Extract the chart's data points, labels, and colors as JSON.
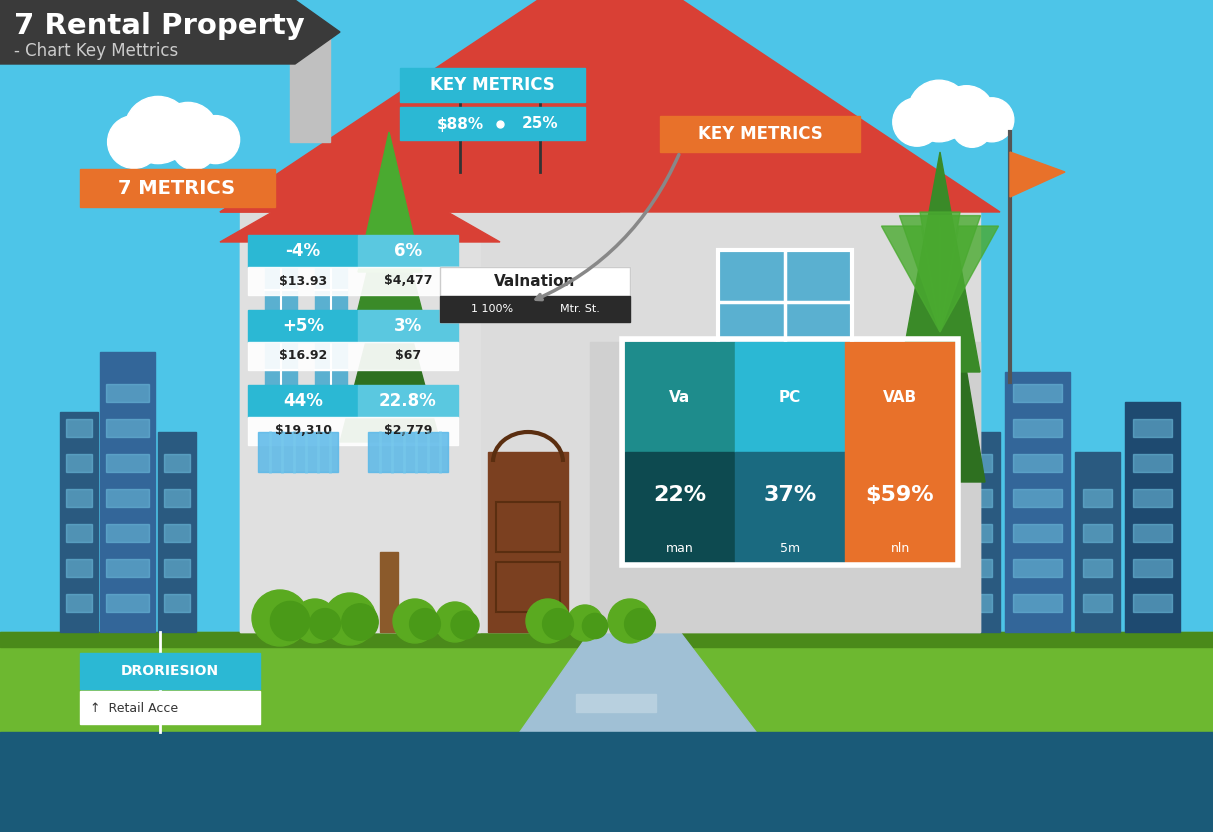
{
  "title_line1": "7 Rental Property",
  "title_line2": "- Chart Key Mettrics",
  "bg_sky_color": "#4DC5E8",
  "title_bg_color": "#3A3A3A",
  "orange_label": "7 METRICS",
  "orange_color": "#E8712A",
  "key_metrics_label": "KEY METRICS",
  "key_metrics_color": "#2BB8D4",
  "key_metrics2_label": "KEY METRICS",
  "key_metrics2_color": "#E8712A",
  "metrics_top_pct": "$88%",
  "metrics_top_val": "25%",
  "valuation_label": "Valnation",
  "valuation_sub1": "1 100%",
  "valuation_sub2": "Mtr. St.",
  "metric_rows": [
    {
      "pct1": "-4%",
      "pct2": "6%",
      "val1": "$13.93",
      "val2": "$4,477"
    },
    {
      "pct1": "+5%",
      "pct2": "3%",
      "val1": "$16.92",
      "val2": "$67"
    },
    {
      "pct1": "44%",
      "pct2": "22.8%",
      "val1": "$19,310",
      "val2": "$2,779"
    }
  ],
  "garage_cols": [
    {
      "header": "Va",
      "value": "22%",
      "sub": "man",
      "color_top": "#1E8C8C",
      "color_bot": "#0D4A50"
    },
    {
      "header": "PC",
      "value": "37%",
      "sub": "5m",
      "color_top": "#2BB8D4",
      "color_bot": "#1A6A80"
    },
    {
      "header": "VAB",
      "value": "$59%",
      "sub": "nln",
      "color_top": "#E8712A",
      "color_bot": "#E8712A"
    }
  ],
  "bottom_label": "DRORIESION",
  "bottom_sub": "Retail Acce",
  "house_roof_color": "#D94035",
  "house_wall_color": "#DCDCDC",
  "ground_color": "#6DB830",
  "ground_dark": "#4A8A1A",
  "city_blue": "#2E6090",
  "city_light": "#3A7AB5",
  "teal_light": "#2BB8D4",
  "door_color": "#7B4020",
  "tree_dark": "#2E7020",
  "tree_mid": "#3A8A28",
  "tree_light": "#4AAA30",
  "bush_color": "#5AAA20",
  "window_blue": "#5AB0D0",
  "driveway_color": "#A0C0D5"
}
